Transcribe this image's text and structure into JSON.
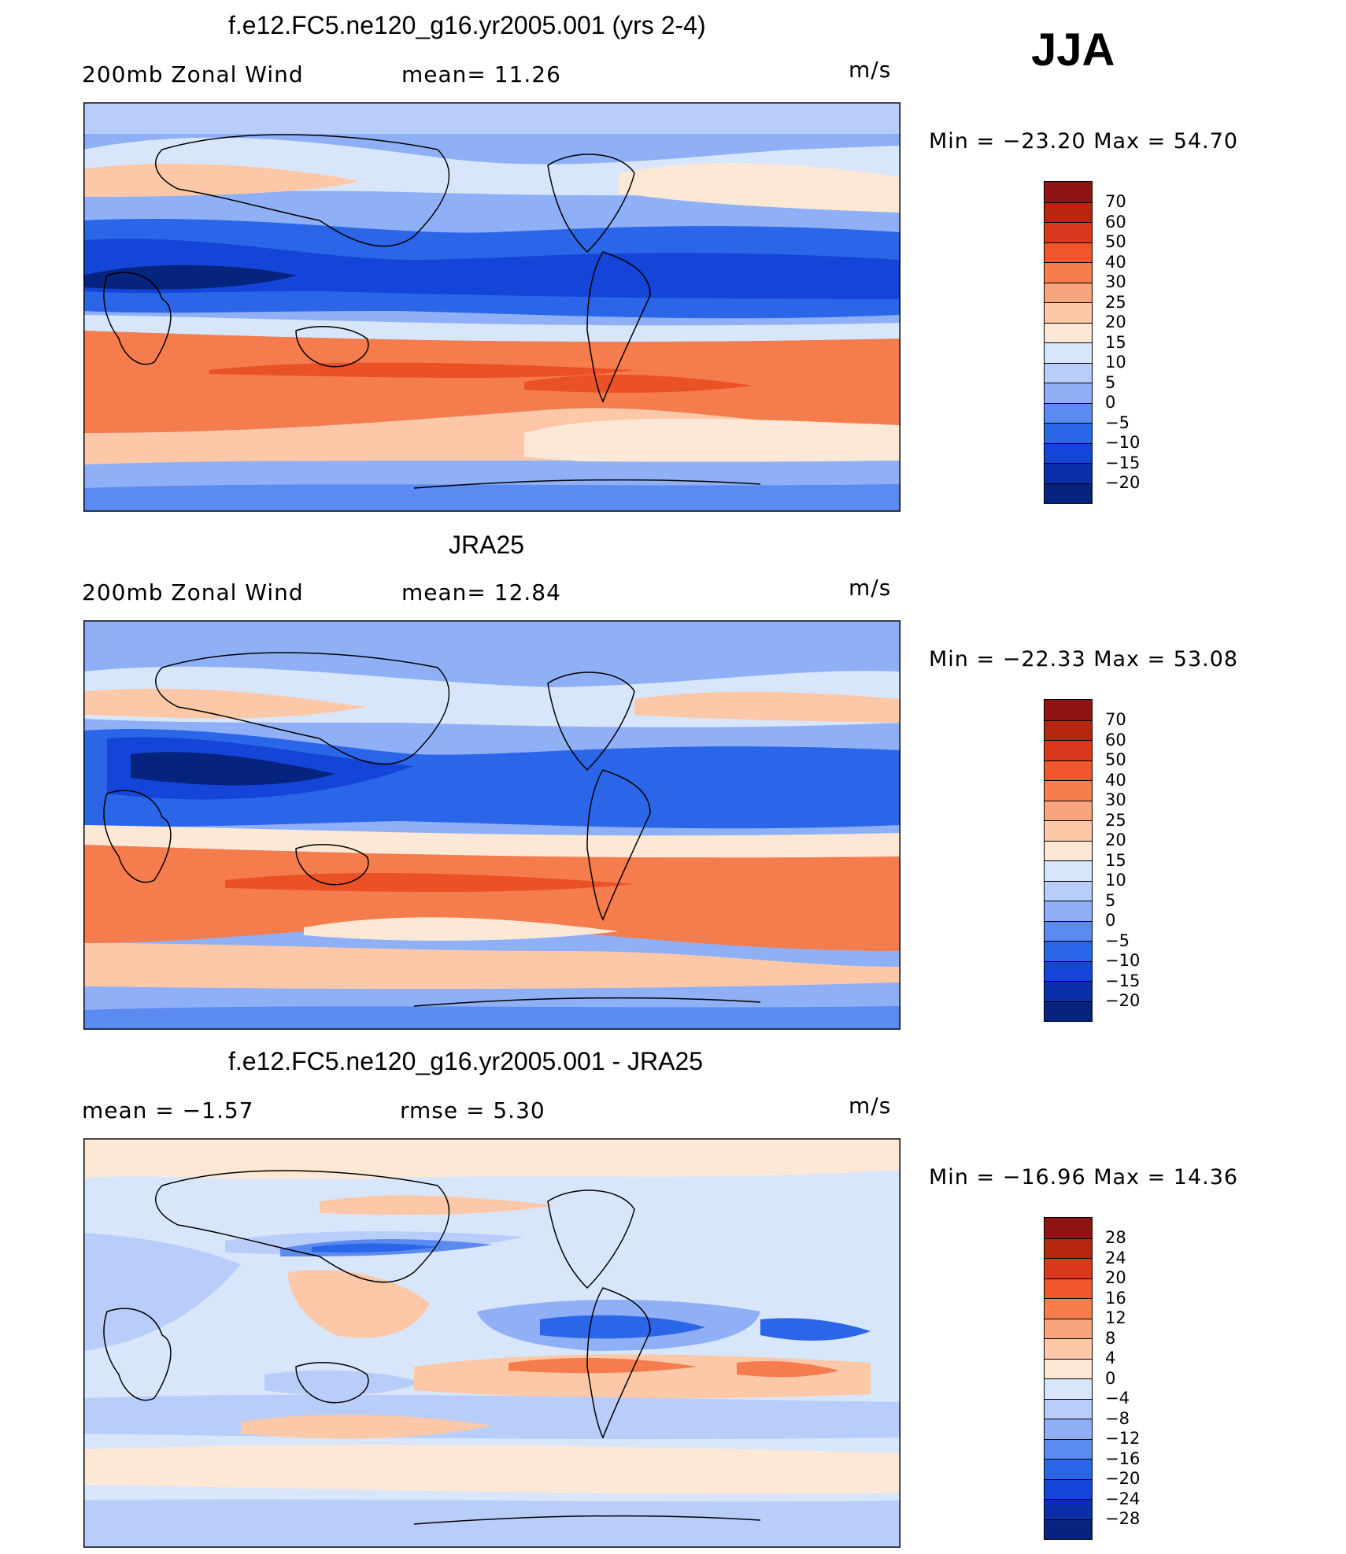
{
  "season": "JJA",
  "colors": {
    "map_fill": [
      [
        "#06237e",
        "#0a2fa8",
        "#1545d8",
        "#2b66e8",
        "#5b8bf0",
        "#8fb0f6",
        "#b8cdf9",
        "#d8e6fb",
        "#fde8d6",
        "#fcc8a8",
        "#f9a47d",
        "#f57c4d",
        "#ea5226",
        "#c9351c",
        "#8d1410"
      ]
    ]
  },
  "panels": [
    {
      "title": "f.e12.FC5.ne120_g16.yr2005.001 (yrs 2-4)",
      "left_text": "200mb  Zonal  Wind",
      "mid_text": "mean=   11.26",
      "units": "m/s",
      "minmax": "Min  =  −23.20  Max  =    54.70",
      "levels": [
        "70",
        "60",
        "50",
        "40",
        "30",
        "25",
        "20",
        "15",
        "10",
        "5",
        "0",
        "−5",
        "−10",
        "−15",
        "−20"
      ],
      "swatches": [
        "#8d1410",
        "#b5270f",
        "#d9381c",
        "#f0562a",
        "#f57c4d",
        "#f9a47d",
        "#fcc8a8",
        "#fde8d6",
        "#d8e6fb",
        "#b8cdf9",
        "#8fb0f6",
        "#5b8bf0",
        "#2b66e8",
        "#1545d8",
        "#0a2fa8",
        "#06237e"
      ]
    },
    {
      "title": "JRA25",
      "left_text": "200mb  Zonal  Wind",
      "mid_text": "mean=   12.84",
      "units": "m/s",
      "minmax": "Min  =  −22.33  Max  =    53.08",
      "levels": [
        "70",
        "60",
        "50",
        "40",
        "30",
        "25",
        "20",
        "15",
        "10",
        "5",
        "0",
        "−5",
        "−10",
        "−15",
        "−20"
      ],
      "swatches": [
        "#8d1410",
        "#b5270f",
        "#d9381c",
        "#f0562a",
        "#f57c4d",
        "#f9a47d",
        "#fcc8a8",
        "#fde8d6",
        "#d8e6fb",
        "#b8cdf9",
        "#8fb0f6",
        "#5b8bf0",
        "#2b66e8",
        "#1545d8",
        "#0a2fa8",
        "#06237e"
      ]
    },
    {
      "title": "f.e12.FC5.ne120_g16.yr2005.001 - JRA25",
      "left_text": "mean  =    −1.57",
      "mid_text": "rmse  =     5.30",
      "units": "m/s",
      "minmax": "Min  =  −16.96  Max  =    14.36",
      "levels": [
        "28",
        "24",
        "20",
        "16",
        "12",
        "8",
        "4",
        "0",
        "−4",
        "−8",
        "−12",
        "−16",
        "−20",
        "−24",
        "−28"
      ],
      "swatches": [
        "#8d1410",
        "#b5270f",
        "#d9381c",
        "#f0562a",
        "#f57c4d",
        "#f9a47d",
        "#fcc8a8",
        "#fde8d6",
        "#d8e6fb",
        "#b8cdf9",
        "#8fb0f6",
        "#5b8bf0",
        "#2b66e8",
        "#1545d8",
        "#0a2fa8",
        "#06237e"
      ]
    }
  ]
}
